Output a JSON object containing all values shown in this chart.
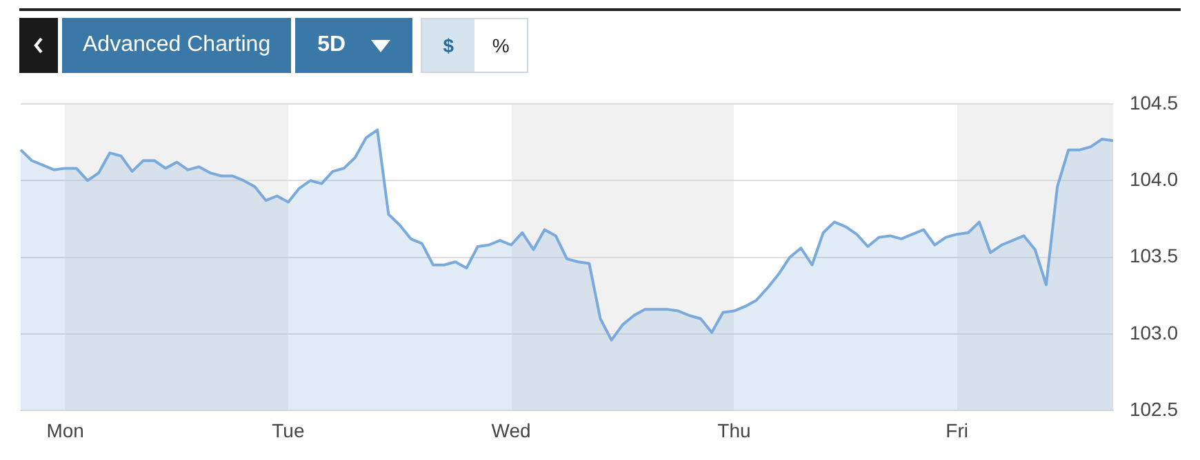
{
  "chart_data": {
    "type": "area",
    "annotations": [
      "Advanced Charting",
      "5D",
      "$",
      "%"
    ],
    "categories": [
      null,
      null,
      null,
      null,
      "Mon",
      null,
      null,
      null,
      null,
      null,
      null,
      null,
      null,
      null,
      null,
      null,
      null,
      null,
      null,
      null,
      null,
      null,
      null,
      null,
      "Tue",
      null,
      null,
      null,
      null,
      null,
      null,
      null,
      null,
      null,
      null,
      null,
      null,
      null,
      null,
      null,
      null,
      null,
      null,
      null,
      "Wed",
      null,
      null,
      null,
      null,
      null,
      null,
      null,
      null,
      null,
      null,
      null,
      null,
      null,
      null,
      null,
      null,
      null,
      null,
      null,
      "Thu",
      null,
      null,
      null,
      null,
      null,
      null,
      null,
      null,
      null,
      null,
      null,
      null,
      null,
      null,
      null,
      null,
      null,
      null,
      null,
      "Fri",
      null,
      null,
      null,
      null,
      null,
      null,
      null,
      null,
      null,
      null,
      null,
      null,
      null,
      null
    ],
    "series": [
      {
        "color": "#7aaadb",
        "values": [
          104.2,
          104.13,
          104.1,
          104.07,
          104.08,
          104.08,
          104.0,
          104.05,
          104.18,
          104.16,
          104.06,
          104.13,
          104.13,
          104.08,
          104.12,
          104.07,
          104.09,
          104.05,
          104.03,
          104.03,
          104.0,
          103.96,
          103.87,
          103.9,
          103.86,
          103.95,
          104.0,
          103.98,
          104.06,
          104.08,
          104.15,
          104.28,
          104.33,
          103.78,
          103.71,
          103.62,
          103.59,
          103.45,
          103.45,
          103.47,
          103.43,
          103.57,
          103.58,
          103.61,
          103.58,
          103.66,
          103.55,
          103.68,
          103.64,
          103.49,
          103.47,
          103.46,
          103.1,
          102.96,
          103.06,
          103.12,
          103.16,
          103.16,
          103.16,
          103.15,
          103.12,
          103.1,
          103.01,
          103.14,
          103.15,
          103.18,
          103.22,
          103.3,
          103.39,
          103.5,
          103.56,
          103.45,
          103.66,
          103.73,
          103.7,
          103.65,
          103.57,
          103.63,
          103.64,
          103.62,
          103.65,
          103.68,
          103.58,
          103.63,
          103.65,
          103.66,
          103.73,
          103.53,
          103.58,
          103.61,
          103.64,
          103.55,
          103.32,
          103.96,
          104.2,
          104.2,
          104.22,
          104.27,
          104.26
        ]
      }
    ],
    "ylim": [
      102.5,
      104.5
    ],
    "yticks": [
      {
        "value": 102.5,
        "label": "102.5"
      },
      {
        "value": 103,
        "label": "103.0"
      },
      {
        "value": 103.5,
        "label": "103.5"
      },
      {
        "value": 104,
        "label": "104.0"
      },
      {
        "value": 104.5,
        "label": "104.5"
      }
    ],
    "grid": "y",
    "legend": false,
    "marker": "none",
    "line_style": "solid"
  }
}
